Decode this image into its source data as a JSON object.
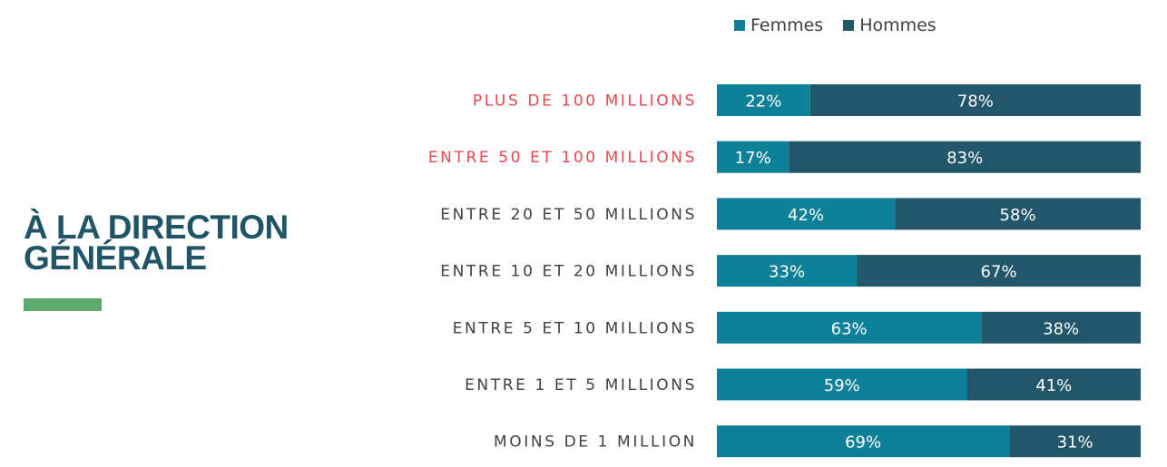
{
  "title_lines": [
    "À LA DIRECTION",
    "GÉNÉRALE"
  ],
  "colors": {
    "title": "#1f5566",
    "accent": "#5aab6c",
    "femmes": "#0e8198",
    "hommes": "#22566a",
    "highlight_label": "#e8474f",
    "label": "#404040",
    "bar_text": "#ffffff"
  },
  "chart_data": {
    "type": "bar",
    "orientation": "horizontal",
    "stacked": true,
    "percent": true,
    "categories": [
      "PLUS DE 100 MILLIONS",
      "ENTRE 50 ET 100 MILLIONS",
      "ENTRE 20 ET 50 MILLIONS",
      "ENTRE 10 ET 20 MILLIONS",
      "ENTRE 5 ET 10 MILLIONS",
      "ENTRE 1 ET 5 MILLIONS",
      "MOINS DE 1 MILLION"
    ],
    "highlighted_categories": [
      0,
      1
    ],
    "series": [
      {
        "name": "Femmes",
        "values": [
          22,
          17,
          42,
          33,
          63,
          59,
          69
        ],
        "labels": [
          "22%",
          "17%",
          "42%",
          "33%",
          "63%",
          "59%",
          "69%"
        ]
      },
      {
        "name": "Hommes",
        "values": [
          78,
          83,
          58,
          67,
          38,
          41,
          31
        ],
        "labels": [
          "78%",
          "83%",
          "58%",
          "67%",
          "38%",
          "41%",
          "31%"
        ]
      }
    ],
    "legend": "top",
    "grid": false
  }
}
